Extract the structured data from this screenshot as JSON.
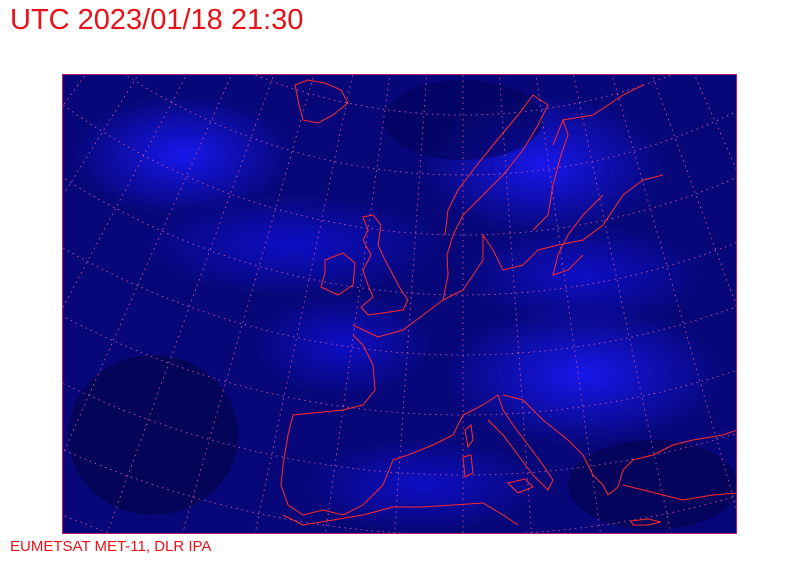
{
  "header": {
    "title": "UTC 2023/01/18 21:30"
  },
  "footer": {
    "credit": "EUMETSAT MET-11, DLR IPA"
  },
  "map": {
    "colors": {
      "background_dark": "#05055a",
      "cloud_bright": "#1a1aff",
      "coastline": "#ff2a2a",
      "graticule": "#e05aa0"
    }
  }
}
